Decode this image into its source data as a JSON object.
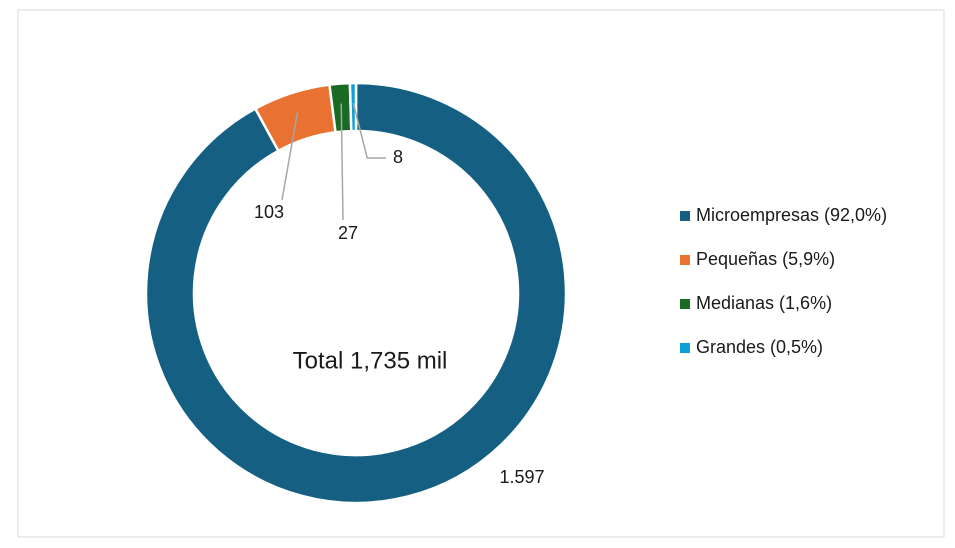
{
  "chart_data": {
    "type": "donut",
    "categories": [
      "Microempresas (92,0%)",
      "Pequeñas (5,9%)",
      "Medianas (1,6%)",
      "Grandes (0,5%)"
    ],
    "values": [
      1597,
      103,
      27,
      8
    ],
    "value_labels": [
      "1.597",
      "103",
      "27",
      "8"
    ],
    "colors": [
      "#156082",
      "#e97132",
      "#196b24",
      "#0f9ed5"
    ],
    "annotation": "Total 1,735 mil",
    "legend": "right"
  }
}
